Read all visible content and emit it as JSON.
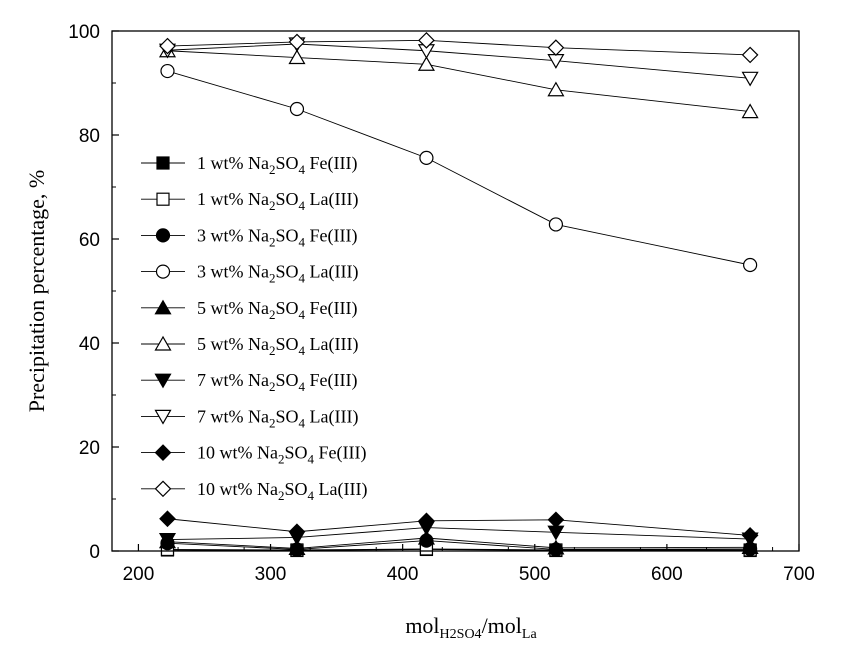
{
  "chart_data": {
    "type": "line",
    "xlabel": "mol",
    "xlabel_sub1": "H2SO4",
    "xlabel_mid": "/mol",
    "xlabel_sub2": "La",
    "ylabel": "Precipitation percentage, %",
    "xlim": [
      180,
      700
    ],
    "ylim": [
      0,
      100
    ],
    "xticks": [
      200,
      300,
      400,
      500,
      600,
      700
    ],
    "yticks": [
      0,
      20,
      40,
      60,
      80,
      100
    ],
    "grid": false,
    "legend_position": "left",
    "x": [
      222,
      320,
      418,
      516,
      663
    ],
    "series": [
      {
        "name": "1 wt% Na2SO4 Fe(III)",
        "marker": "square",
        "filled": true,
        "conc": "1",
        "salt_pre": "Na",
        "salt_sub1": "2",
        "salt_mid": "SO",
        "salt_sub2": "4",
        "species": "Fe(III)",
        "values": [
          0.2,
          0.1,
          0.3,
          0.1,
          0.1
        ]
      },
      {
        "name": "1 wt% Na2SO4 La(III)",
        "marker": "square",
        "filled": false,
        "conc": "1",
        "salt_pre": "Na",
        "salt_sub1": "2",
        "salt_mid": "SO",
        "salt_sub2": "4",
        "species": "La(III)",
        "values": [
          0.3,
          0.2,
          0.4,
          0.2,
          0.2
        ]
      },
      {
        "name": "3 wt% Na2SO4 Fe(III)",
        "marker": "circle",
        "filled": true,
        "conc": "3",
        "salt_pre": "Na",
        "salt_sub1": "2",
        "salt_mid": "SO",
        "salt_sub2": "4",
        "species": "Fe(III)",
        "values": [
          1.5,
          0.3,
          2.0,
          0.3,
          0.4
        ]
      },
      {
        "name": "3 wt% Na2SO4 La(III)",
        "marker": "circle",
        "filled": false,
        "conc": "3",
        "salt_pre": "Na",
        "salt_sub1": "2",
        "salt_mid": "SO",
        "salt_sub2": "4",
        "species": "La(III)",
        "values": [
          92.3,
          85.0,
          75.6,
          62.8,
          55.0
        ]
      },
      {
        "name": "5 wt% Na2SO4 Fe(III)",
        "marker": "triangle-up",
        "filled": true,
        "conc": "5",
        "salt_pre": "Na",
        "salt_sub1": "2",
        "salt_mid": "SO",
        "salt_sub2": "4",
        "species": "Fe(III)",
        "values": [
          1.8,
          0.5,
          2.5,
          0.6,
          0.7
        ]
      },
      {
        "name": "5 wt% Na2SO4 La(III)",
        "marker": "triangle-up",
        "filled": false,
        "conc": "5",
        "salt_pre": "Na",
        "salt_sub1": "2",
        "salt_mid": "SO",
        "salt_sub2": "4",
        "species": "La(III)",
        "values": [
          96.2,
          94.9,
          93.6,
          88.7,
          84.5
        ]
      },
      {
        "name": "7 wt% Na2SO4 Fe(III)",
        "marker": "triangle-down",
        "filled": true,
        "conc": "7",
        "salt_pre": "Na",
        "salt_sub1": "2",
        "salt_mid": "SO",
        "salt_sub2": "4",
        "species": "Fe(III)",
        "values": [
          2.2,
          2.6,
          4.5,
          3.6,
          2.3
        ]
      },
      {
        "name": "7 wt% Na2SO4 La(III)",
        "marker": "triangle-down",
        "filled": false,
        "conc": "7",
        "salt_pre": "Na",
        "salt_sub1": "2",
        "salt_mid": "SO",
        "salt_sub2": "4",
        "species": "La(III)",
        "values": [
          96.3,
          97.5,
          96.2,
          94.3,
          90.9
        ]
      },
      {
        "name": "10 wt% Na2SO4 Fe(III)",
        "marker": "diamond",
        "filled": true,
        "conc": "10",
        "salt_pre": "Na",
        "salt_sub1": "2",
        "salt_mid": "SO",
        "salt_sub2": "4",
        "species": "Fe(III)",
        "values": [
          6.2,
          3.7,
          5.8,
          6.0,
          3.0
        ]
      },
      {
        "name": "10 wt% Na2SO4 La(III)",
        "marker": "diamond",
        "filled": false,
        "conc": "10",
        "salt_pre": "Na",
        "salt_sub1": "2",
        "salt_mid": "SO",
        "salt_sub2": "4",
        "species": "La(III)",
        "values": [
          97.1,
          97.9,
          98.2,
          96.8,
          95.4
        ]
      }
    ]
  }
}
